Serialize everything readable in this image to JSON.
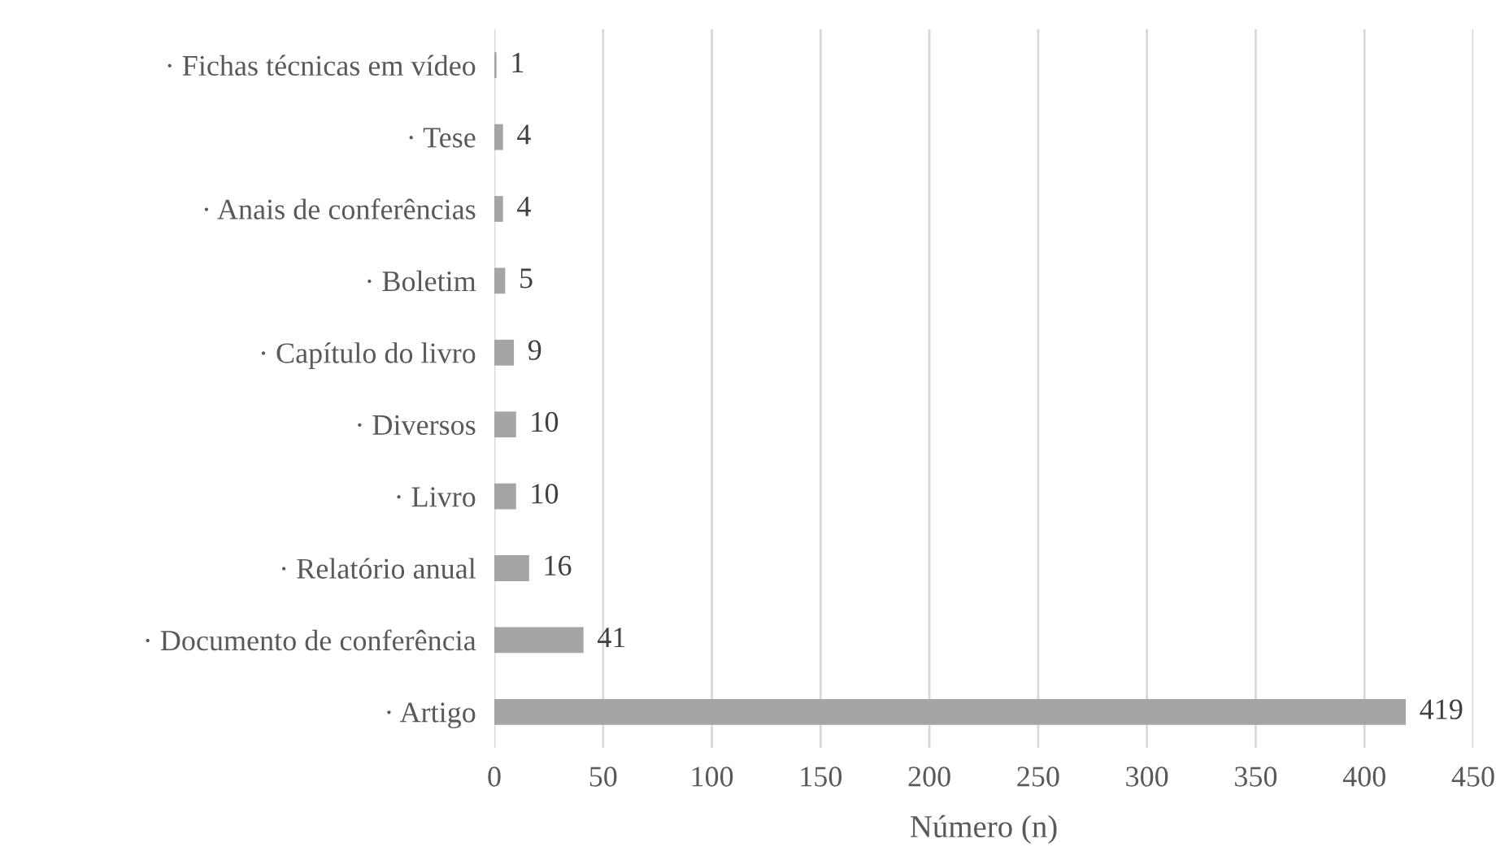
{
  "chart_data": {
    "type": "bar",
    "orientation": "horizontal",
    "xlabel": "Número (n)",
    "categories": [
      "· Fichas técnicas em vídeo",
      "· Tese",
      "· Anais de conferências",
      "· Boletim",
      "· Capítulo do livro",
      "· Diversos",
      "· Livro",
      "· Relatório anual",
      "· Documento de conferência",
      "· Artigo"
    ],
    "values": [
      1,
      4,
      4,
      5,
      9,
      10,
      10,
      16,
      41,
      419
    ],
    "color": "#a5a5a5",
    "xlim": [
      0,
      450
    ],
    "xticks": [
      0,
      50,
      100,
      150,
      200,
      250,
      300,
      350,
      400,
      450
    ],
    "grid": "x",
    "data_labels": true
  }
}
